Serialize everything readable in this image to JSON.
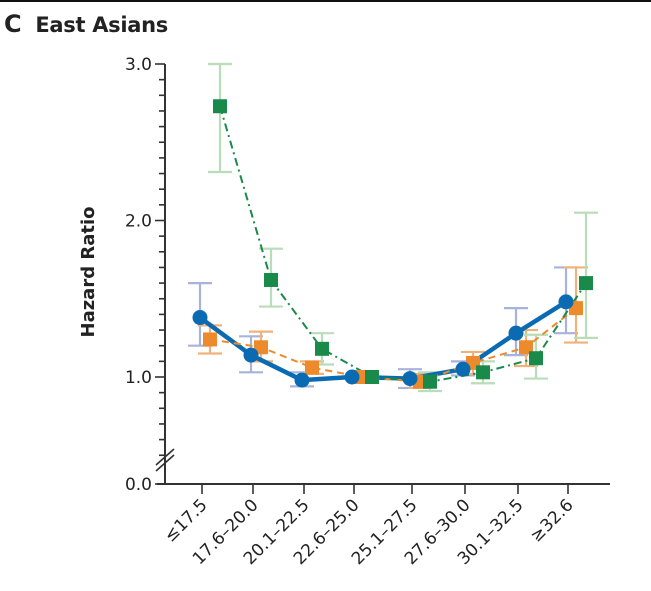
{
  "panel": {
    "letter": "C",
    "title": "East Asians"
  },
  "colors": {
    "blue": "#0a6bb3",
    "blue_ci": "#a8b3dc",
    "orange": "#ec8a2c",
    "orange_ci": "#f0b27a",
    "green": "#1a8a4a",
    "green_ci": "#b9dcb9",
    "axis": "#333333"
  },
  "chart_data": {
    "type": "line",
    "title": "East Asians",
    "xlabel": "",
    "ylabel": "Hazard Ratio",
    "ylim": [
      0.0,
      3.0
    ],
    "y_axis_break": true,
    "yticks_labeled": [
      "0.0",
      "1.0",
      "2.0",
      "3.0"
    ],
    "grid": false,
    "categories": [
      "≤17.5",
      "17.6–20.0",
      "20.1–22.5",
      "22.6–25.0",
      "25.1–27.5",
      "27.6–30.0",
      "30.1–32.5",
      "≥32.6"
    ],
    "series": [
      {
        "name": "Series 1 (blue circles, solid)",
        "marker": "circle",
        "line": "solid",
        "values": [
          1.38,
          1.14,
          0.98,
          1.0,
          0.99,
          1.05,
          1.28,
          1.48
        ],
        "ci_upper": [
          1.6,
          1.26,
          1.03,
          1.0,
          1.05,
          1.1,
          1.44,
          1.7
        ],
        "ci_lower": [
          1.2,
          1.03,
          0.94,
          1.0,
          0.93,
          1.01,
          1.14,
          1.28
        ]
      },
      {
        "name": "Series 2 (orange squares, dashed)",
        "marker": "square",
        "line": "dashed",
        "values": [
          1.24,
          1.19,
          1.06,
          1.0,
          0.97,
          1.09,
          1.19,
          1.44
        ],
        "ci_upper": [
          1.33,
          1.29,
          1.1,
          1.0,
          1.02,
          1.16,
          1.3,
          1.7
        ],
        "ci_lower": [
          1.15,
          1.1,
          1.02,
          1.0,
          0.93,
          1.02,
          1.07,
          1.22
        ]
      },
      {
        "name": "Series 3 (green squares, dash-dot)",
        "marker": "square",
        "line": "dashdot",
        "values": [
          2.73,
          1.62,
          1.18,
          1.0,
          0.97,
          1.03,
          1.12,
          1.6
        ],
        "ci_upper": [
          3.0,
          1.82,
          1.28,
          1.0,
          1.03,
          1.1,
          1.27,
          2.05
        ],
        "ci_lower": [
          2.31,
          1.45,
          1.08,
          1.0,
          0.91,
          0.96,
          0.99,
          1.25
        ]
      }
    ]
  }
}
